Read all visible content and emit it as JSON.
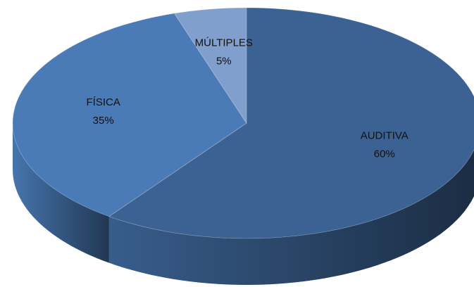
{
  "chart_data": {
    "type": "pie",
    "categories": [
      "AUDITIVA",
      "FÍSICA",
      "MÚLTIPLES"
    ],
    "values": [
      60,
      35,
      5
    ],
    "value_labels": [
      "60%",
      "35%",
      "5%"
    ],
    "colors": [
      "#3b6293",
      "#4a7bb6",
      "#819fcd"
    ]
  }
}
